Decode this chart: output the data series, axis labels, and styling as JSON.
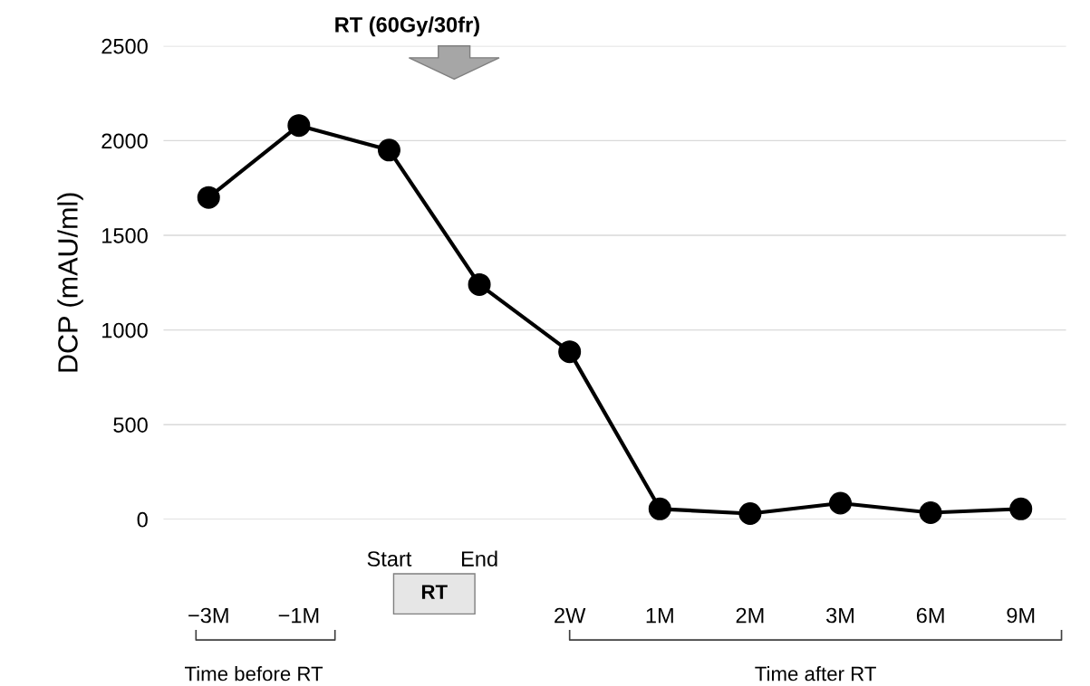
{
  "chart_data": {
    "type": "line",
    "ylabel": "DCP (mAU/ml)",
    "categories": [
      "−3M",
      "−1M",
      "Start",
      "End",
      "2W",
      "1M",
      "2M",
      "3M",
      "6M",
      "9M"
    ],
    "series": [
      {
        "color": "#000000",
        "values": [
          1700,
          2080,
          1950,
          1240,
          885,
          55,
          30,
          85,
          35,
          55
        ]
      }
    ],
    "ylim": [
      0,
      2500
    ],
    "yticks": [
      0,
      500,
      1000,
      1500,
      2000,
      2500
    ],
    "grid": "y",
    "marker": "circle",
    "line_style": "solid",
    "legend": false,
    "annotations": [
      "RT (60Gy/30fr)",
      "RT",
      "Time before RT",
      "Time after RT"
    ]
  }
}
